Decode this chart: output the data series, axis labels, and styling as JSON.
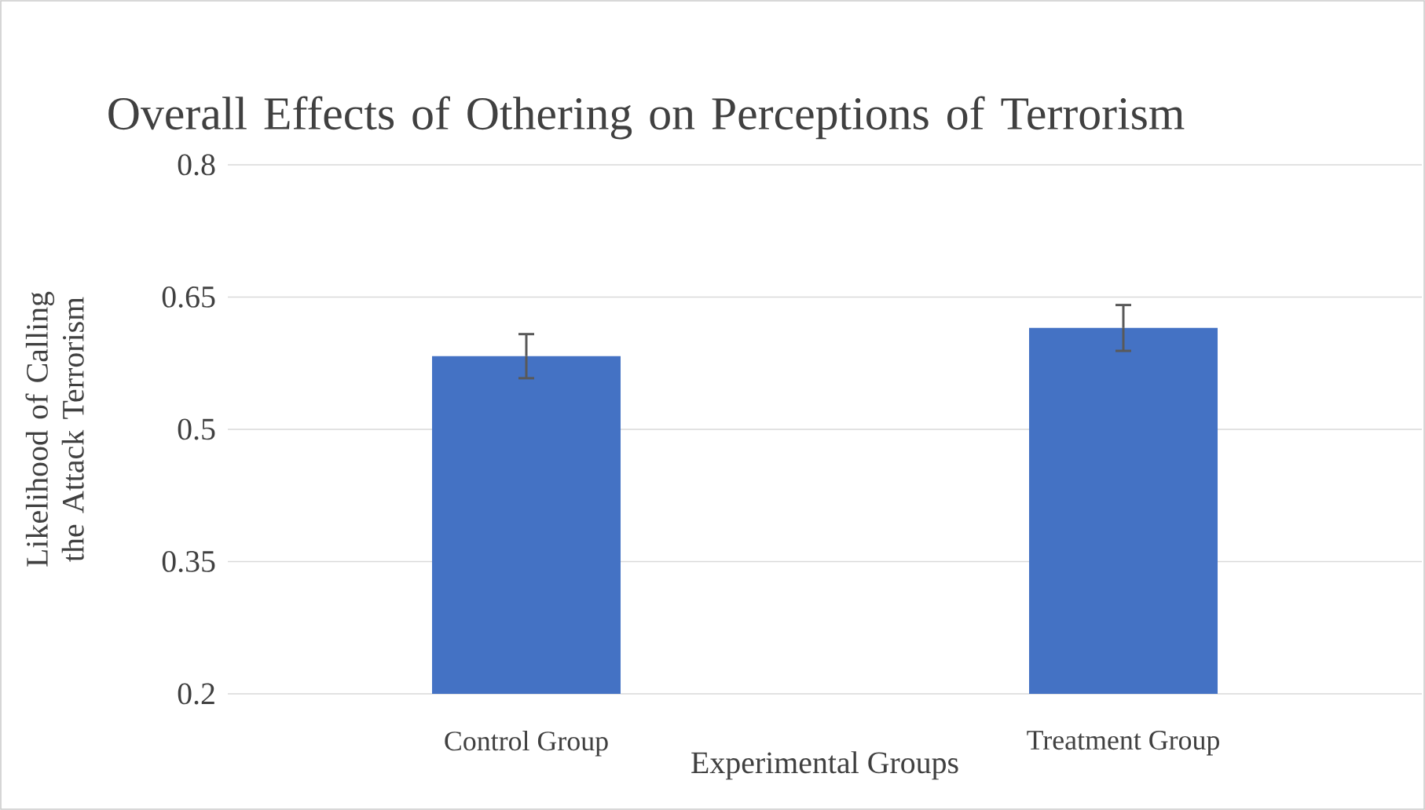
{
  "chart_data": {
    "type": "bar",
    "title": "Overall Effects of Othering on Perceptions of Terrorism",
    "xlabel": "Experimental Groups",
    "ylabel": "Likelihood of Calling the Attack Terrorism",
    "categories": [
      "Control Group",
      "Treatment Group"
    ],
    "values": [
      0.583,
      0.615
    ],
    "errors": [
      0.025,
      0.026
    ],
    "color": "#4472c4",
    "ylim": [
      0.2,
      0.8
    ],
    "yticks": [
      0.2,
      0.35,
      0.5,
      0.65,
      0.8
    ],
    "grid": "y"
  }
}
